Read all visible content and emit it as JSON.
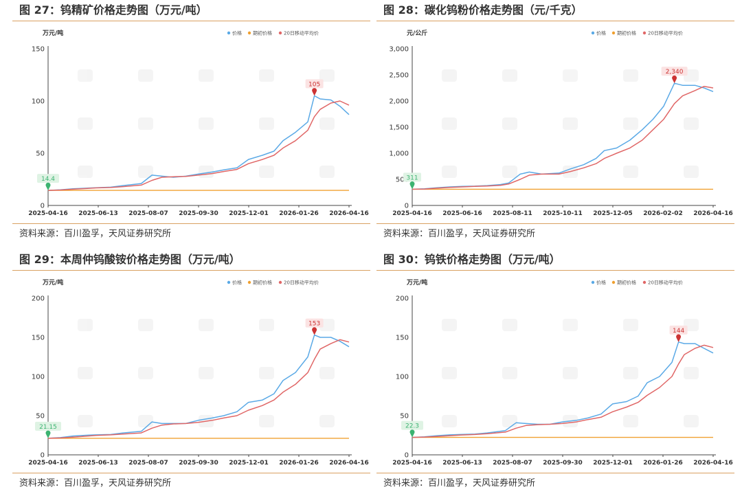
{
  "panels": [
    {
      "title": "图 27：钨精矿价格走势图（万元/吨）",
      "source": "资料来源：百川盈孚，天风证券研究所"
    },
    {
      "title": "图 28：碳化钨粉价格走势图（元/千克）",
      "source": "资料来源：百川盈孚，天风证券研究所"
    },
    {
      "title": "图 29：本周仲钨酸铵价格走势图（万元/吨）",
      "source": "资料来源：百川盈孚，天风证券研究所"
    },
    {
      "title": "图 30：钨铁价格走势图（万元/吨）",
      "source": "资料来源：百川盈孚，天风证券研究所"
    }
  ],
  "colors": {
    "price": "#5aa9e6",
    "period_start": "#f0a030",
    "ma20": "#e06666",
    "start_marker": "#3cb371",
    "peak_marker": "#cc3333"
  },
  "chart_data": [
    {
      "type": "line",
      "unit_label": "万元/吨",
      "ylim": [
        0,
        150
      ],
      "yticks": [
        "0",
        "50",
        "100",
        "150"
      ],
      "ytick_values": [
        0,
        50,
        100,
        150
      ],
      "xtick_labels": [
        "2025-04-16",
        "2025-06-13",
        "2025-08-07",
        "2025-09-30",
        "2025-12-01",
        "2026-01-26",
        "2026-04-16"
      ],
      "x": [
        "2025-04-16",
        "2025-05-01",
        "2025-05-16",
        "2025-06-01",
        "2025-06-13",
        "2025-07-01",
        "2025-07-16",
        "2025-08-07",
        "2025-08-20",
        "2025-09-01",
        "2025-09-15",
        "2025-09-30",
        "2025-10-15",
        "2025-11-01",
        "2025-11-15",
        "2025-12-01",
        "2025-12-15",
        "2026-01-01",
        "2026-01-15",
        "2026-01-26",
        "2026-02-10",
        "2026-02-25",
        "2026-03-05",
        "2026-03-12",
        "2026-03-25",
        "2026-04-05",
        "2026-04-16"
      ],
      "series": [
        {
          "name": "价格",
          "values": [
            14.4,
            15,
            16,
            16.5,
            17,
            17.5,
            19,
            21,
            29,
            28,
            27,
            28,
            30,
            32,
            34,
            36,
            44,
            48,
            52,
            62,
            70,
            80,
            105,
            102,
            101,
            95,
            87
          ]
        },
        {
          "name": "期初价格",
          "values": [
            14.4,
            14.4,
            14.4,
            14.4,
            14.4,
            14.4,
            14.4,
            14.4,
            14.4,
            14.4,
            14.4,
            14.4,
            14.4,
            14.4,
            14.4,
            14.4,
            14.4,
            14.4,
            14.4,
            14.4,
            14.4,
            14.4,
            14.4,
            14.4,
            14.4,
            14.4,
            14.4
          ]
        },
        {
          "name": "20日移动平均价",
          "values": [
            14.4,
            14.8,
            15.5,
            16.2,
            16.8,
            17.2,
            18,
            19.5,
            24,
            27,
            27.5,
            27.8,
            29,
            30.5,
            32.5,
            34.5,
            40,
            44,
            48,
            55,
            62,
            72,
            85,
            92,
            98,
            100,
            96
          ]
        }
      ],
      "annotations": [
        {
          "label": "14.4",
          "x_index": 0,
          "kind": "start"
        },
        {
          "label": "105",
          "x_index": 22,
          "kind": "peak"
        }
      ],
      "legend": "top-right"
    },
    {
      "type": "line",
      "unit_label": "元/公斤",
      "ylim": [
        0,
        3000
      ],
      "yticks": [
        "0",
        "500",
        "1,000",
        "1,500",
        "2,000",
        "2,500",
        "3,000"
      ],
      "ytick_values": [
        0,
        500,
        1000,
        1500,
        2000,
        2500,
        3000
      ],
      "xtick_labels": [
        "2025-04-16",
        "2025-06-16",
        "2025-08-11",
        "2025-10-11",
        "2025-12-05",
        "2026-02-02",
        "2026-04-16"
      ],
      "x": [
        "2025-04-16",
        "2025-05-01",
        "2025-05-16",
        "2025-06-01",
        "2025-06-16",
        "2025-07-01",
        "2025-07-16",
        "2025-08-01",
        "2025-08-11",
        "2025-08-25",
        "2025-09-05",
        "2025-09-20",
        "2025-10-11",
        "2025-10-25",
        "2025-11-10",
        "2025-11-25",
        "2025-12-05",
        "2025-12-20",
        "2026-01-05",
        "2026-01-20",
        "2026-02-02",
        "2026-02-15",
        "2026-02-28",
        "2026-03-10",
        "2026-03-25",
        "2026-04-05",
        "2026-04-16"
      ],
      "series": [
        {
          "name": "价格",
          "values": [
            311,
            320,
            340,
            355,
            365,
            370,
            380,
            400,
            430,
            600,
            640,
            600,
            620,
            700,
            780,
            900,
            1050,
            1100,
            1250,
            1450,
            1650,
            1900,
            2340,
            2300,
            2300,
            2250,
            2180
          ]
        },
        {
          "name": "期初价格",
          "values": [
            311,
            311,
            311,
            311,
            311,
            311,
            311,
            311,
            311,
            311,
            311,
            311,
            311,
            311,
            311,
            311,
            311,
            311,
            311,
            311,
            311,
            311,
            311,
            311,
            311,
            311,
            311
          ]
        },
        {
          "name": "20日移动平均价",
          "values": [
            311,
            315,
            330,
            345,
            355,
            365,
            372,
            385,
            410,
            500,
            580,
            600,
            600,
            650,
            720,
            800,
            900,
            1000,
            1100,
            1250,
            1450,
            1650,
            1950,
            2100,
            2200,
            2280,
            2250
          ]
        }
      ],
      "annotations": [
        {
          "label": "311",
          "x_index": 0,
          "kind": "start"
        },
        {
          "label": "2,340",
          "x_index": 22,
          "kind": "peak"
        }
      ],
      "legend": "top-right"
    },
    {
      "type": "line",
      "unit_label": "万元/吨",
      "ylim": [
        0,
        200
      ],
      "yticks": [
        "0",
        "50",
        "100",
        "150",
        "200"
      ],
      "ytick_values": [
        0,
        50,
        100,
        150,
        200
      ],
      "xtick_labels": [
        "2025-04-16",
        "2025-06-13",
        "2025-08-07",
        "2025-09-30",
        "2025-12-01",
        "2026-01-26",
        "2026-04-16"
      ],
      "x": [
        "2025-04-16",
        "2025-05-01",
        "2025-05-16",
        "2025-06-01",
        "2025-06-13",
        "2025-07-01",
        "2025-07-16",
        "2025-08-07",
        "2025-08-20",
        "2025-09-01",
        "2025-09-15",
        "2025-09-30",
        "2025-10-15",
        "2025-11-01",
        "2025-11-15",
        "2025-12-01",
        "2025-12-15",
        "2026-01-01",
        "2026-01-15",
        "2026-01-26",
        "2026-02-10",
        "2026-02-25",
        "2026-03-05",
        "2026-03-12",
        "2026-03-25",
        "2026-04-05",
        "2026-04-16"
      ],
      "series": [
        {
          "name": "价格",
          "values": [
            21.15,
            22,
            24,
            25,
            25.5,
            26,
            28,
            30,
            42,
            40,
            40,
            40,
            44,
            47,
            50,
            55,
            67,
            70,
            78,
            95,
            105,
            125,
            153,
            150,
            150,
            145,
            138
          ]
        },
        {
          "name": "期初价格",
          "values": [
            21.15,
            21.15,
            21.15,
            21.15,
            21.15,
            21.15,
            21.15,
            21.15,
            21.15,
            21.15,
            21.15,
            21.15,
            21.15,
            21.15,
            21.15,
            21.15,
            21.15,
            21.15,
            21.15,
            21.15,
            21.15,
            21.15,
            21.15,
            21.15,
            21.15,
            21.15,
            21.15
          ]
        },
        {
          "name": "20日移动平均价",
          "values": [
            21.15,
            21.6,
            22.5,
            23.8,
            24.8,
            25.5,
            26.5,
            28,
            34,
            38,
            39.5,
            40,
            41.5,
            44,
            47,
            50,
            57,
            63,
            70,
            80,
            90,
            105,
            122,
            135,
            142,
            147,
            144
          ]
        }
      ],
      "annotations": [
        {
          "label": "21.15",
          "x_index": 0,
          "kind": "start"
        },
        {
          "label": "153",
          "x_index": 22,
          "kind": "peak"
        }
      ],
      "legend": "top-right"
    },
    {
      "type": "line",
      "unit_label": "万元/吨",
      "ylim": [
        0,
        200
      ],
      "yticks": [
        "0",
        "50",
        "100",
        "150",
        "200"
      ],
      "ytick_values": [
        0,
        50,
        100,
        150,
        200
      ],
      "xtick_labels": [
        "2025-04-16",
        "2025-06-13",
        "2025-08-07",
        "2025-09-30",
        "2025-12-01",
        "2026-01-26",
        "2026-04-16"
      ],
      "x": [
        "2025-04-16",
        "2025-05-01",
        "2025-05-16",
        "2025-06-01",
        "2025-06-13",
        "2025-07-01",
        "2025-07-16",
        "2025-08-07",
        "2025-08-20",
        "2025-09-01",
        "2025-09-15",
        "2025-09-30",
        "2025-10-15",
        "2025-11-01",
        "2025-11-15",
        "2025-12-01",
        "2025-12-15",
        "2026-01-01",
        "2026-01-15",
        "2026-01-26",
        "2026-02-10",
        "2026-02-25",
        "2026-03-05",
        "2026-03-12",
        "2026-03-25",
        "2026-04-05",
        "2026-04-16"
      ],
      "series": [
        {
          "name": "价格",
          "values": [
            22.3,
            23,
            24.5,
            25.5,
            26,
            26.5,
            28,
            31,
            41,
            40,
            39,
            39,
            42,
            44,
            47,
            52,
            65,
            68,
            75,
            92,
            100,
            118,
            144,
            142,
            142,
            136,
            130
          ]
        },
        {
          "name": "期初价格",
          "values": [
            22.3,
            22.3,
            22.3,
            22.3,
            22.3,
            22.3,
            22.3,
            22.3,
            22.3,
            22.3,
            22.3,
            22.3,
            22.3,
            22.3,
            22.3,
            22.3,
            22.3,
            22.3,
            22.3,
            22.3,
            22.3,
            22.3,
            22.3,
            22.3,
            22.3,
            22.3,
            22.3
          ]
        },
        {
          "name": "20日移动平均价",
          "values": [
            22.3,
            22.7,
            23.5,
            24.5,
            25.3,
            26,
            27,
            29,
            34,
            37.5,
            38.5,
            39,
            40,
            42,
            45,
            48,
            55,
            61,
            67,
            76,
            86,
            100,
            116,
            128,
            136,
            140,
            137
          ]
        }
      ],
      "annotations": [
        {
          "label": "22.3",
          "x_index": 0,
          "kind": "start"
        },
        {
          "label": "144",
          "x_index": 22,
          "kind": "peak"
        }
      ],
      "legend": "top-right"
    }
  ]
}
